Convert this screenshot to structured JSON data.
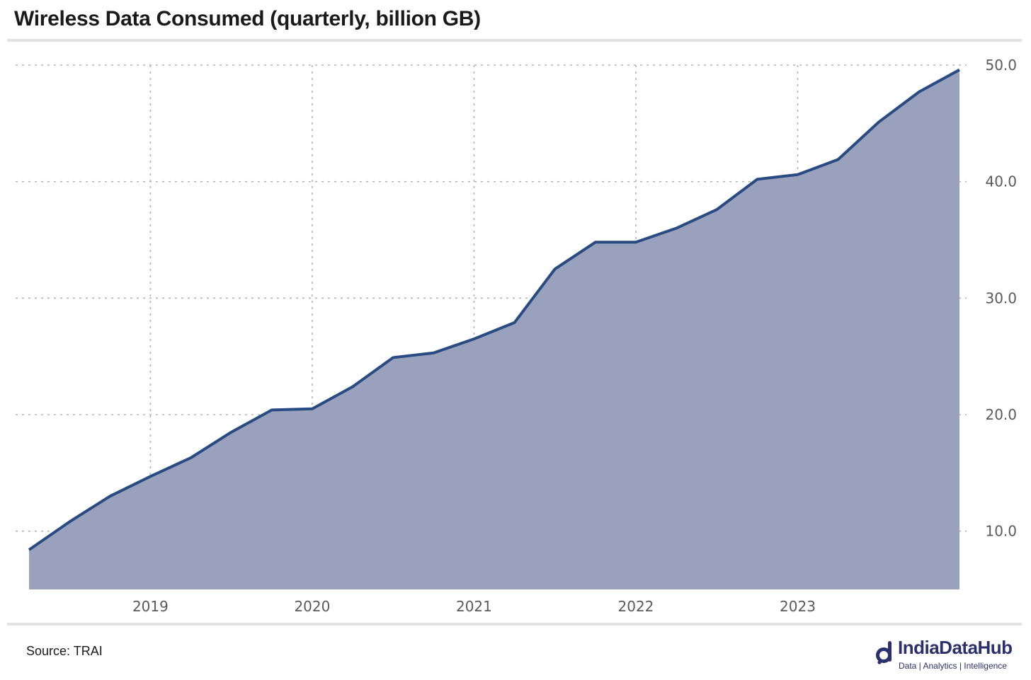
{
  "title": "Wireless Data Consumed (quarterly, billion GB)",
  "source": "Source: TRAI",
  "brand": {
    "name": "IndiaDataHub",
    "tagline": "Data | Analytics | Intelligence",
    "color": "#2c2f6e"
  },
  "colors": {
    "area_fill": "#9aa1bd",
    "line": "#274b82",
    "grid": "#b4b4b4"
  },
  "chart_data": {
    "type": "area",
    "title": "Wireless Data Consumed (quarterly, billion GB)",
    "xlabel": "",
    "ylabel": "",
    "y_axis_position": "right",
    "grid": true,
    "ylim": [
      5,
      50
    ],
    "y_ticks": [
      10.0,
      20.0,
      30.0,
      40.0,
      50.0
    ],
    "y_tick_labels": [
      "10.0",
      "20.0",
      "30.0",
      "40.0",
      "50.0"
    ],
    "x_ticks": [
      2019,
      2020,
      2021,
      2022,
      2023
    ],
    "x_tick_labels": [
      "2019",
      "2020",
      "2021",
      "2022",
      "2023"
    ],
    "series": [
      {
        "x": [
          2018.25,
          2018.5,
          2018.75,
          2019.0,
          2019.25,
          2019.5,
          2019.75,
          2020.0,
          2020.25,
          2020.5,
          2020.75,
          2021.0,
          2021.25,
          2021.5,
          2021.75,
          2022.0,
          2022.25,
          2022.5,
          2022.75,
          2023.0,
          2023.25,
          2023.5,
          2023.75,
          2024.0
        ],
        "values": [
          8.4,
          10.8,
          13.0,
          14.7,
          16.3,
          18.5,
          20.4,
          20.5,
          22.4,
          24.9,
          25.3,
          26.5,
          27.9,
          32.5,
          34.8,
          34.8,
          36.0,
          37.6,
          40.2,
          40.6,
          41.9,
          45.1,
          47.7,
          49.6
        ]
      }
    ]
  }
}
